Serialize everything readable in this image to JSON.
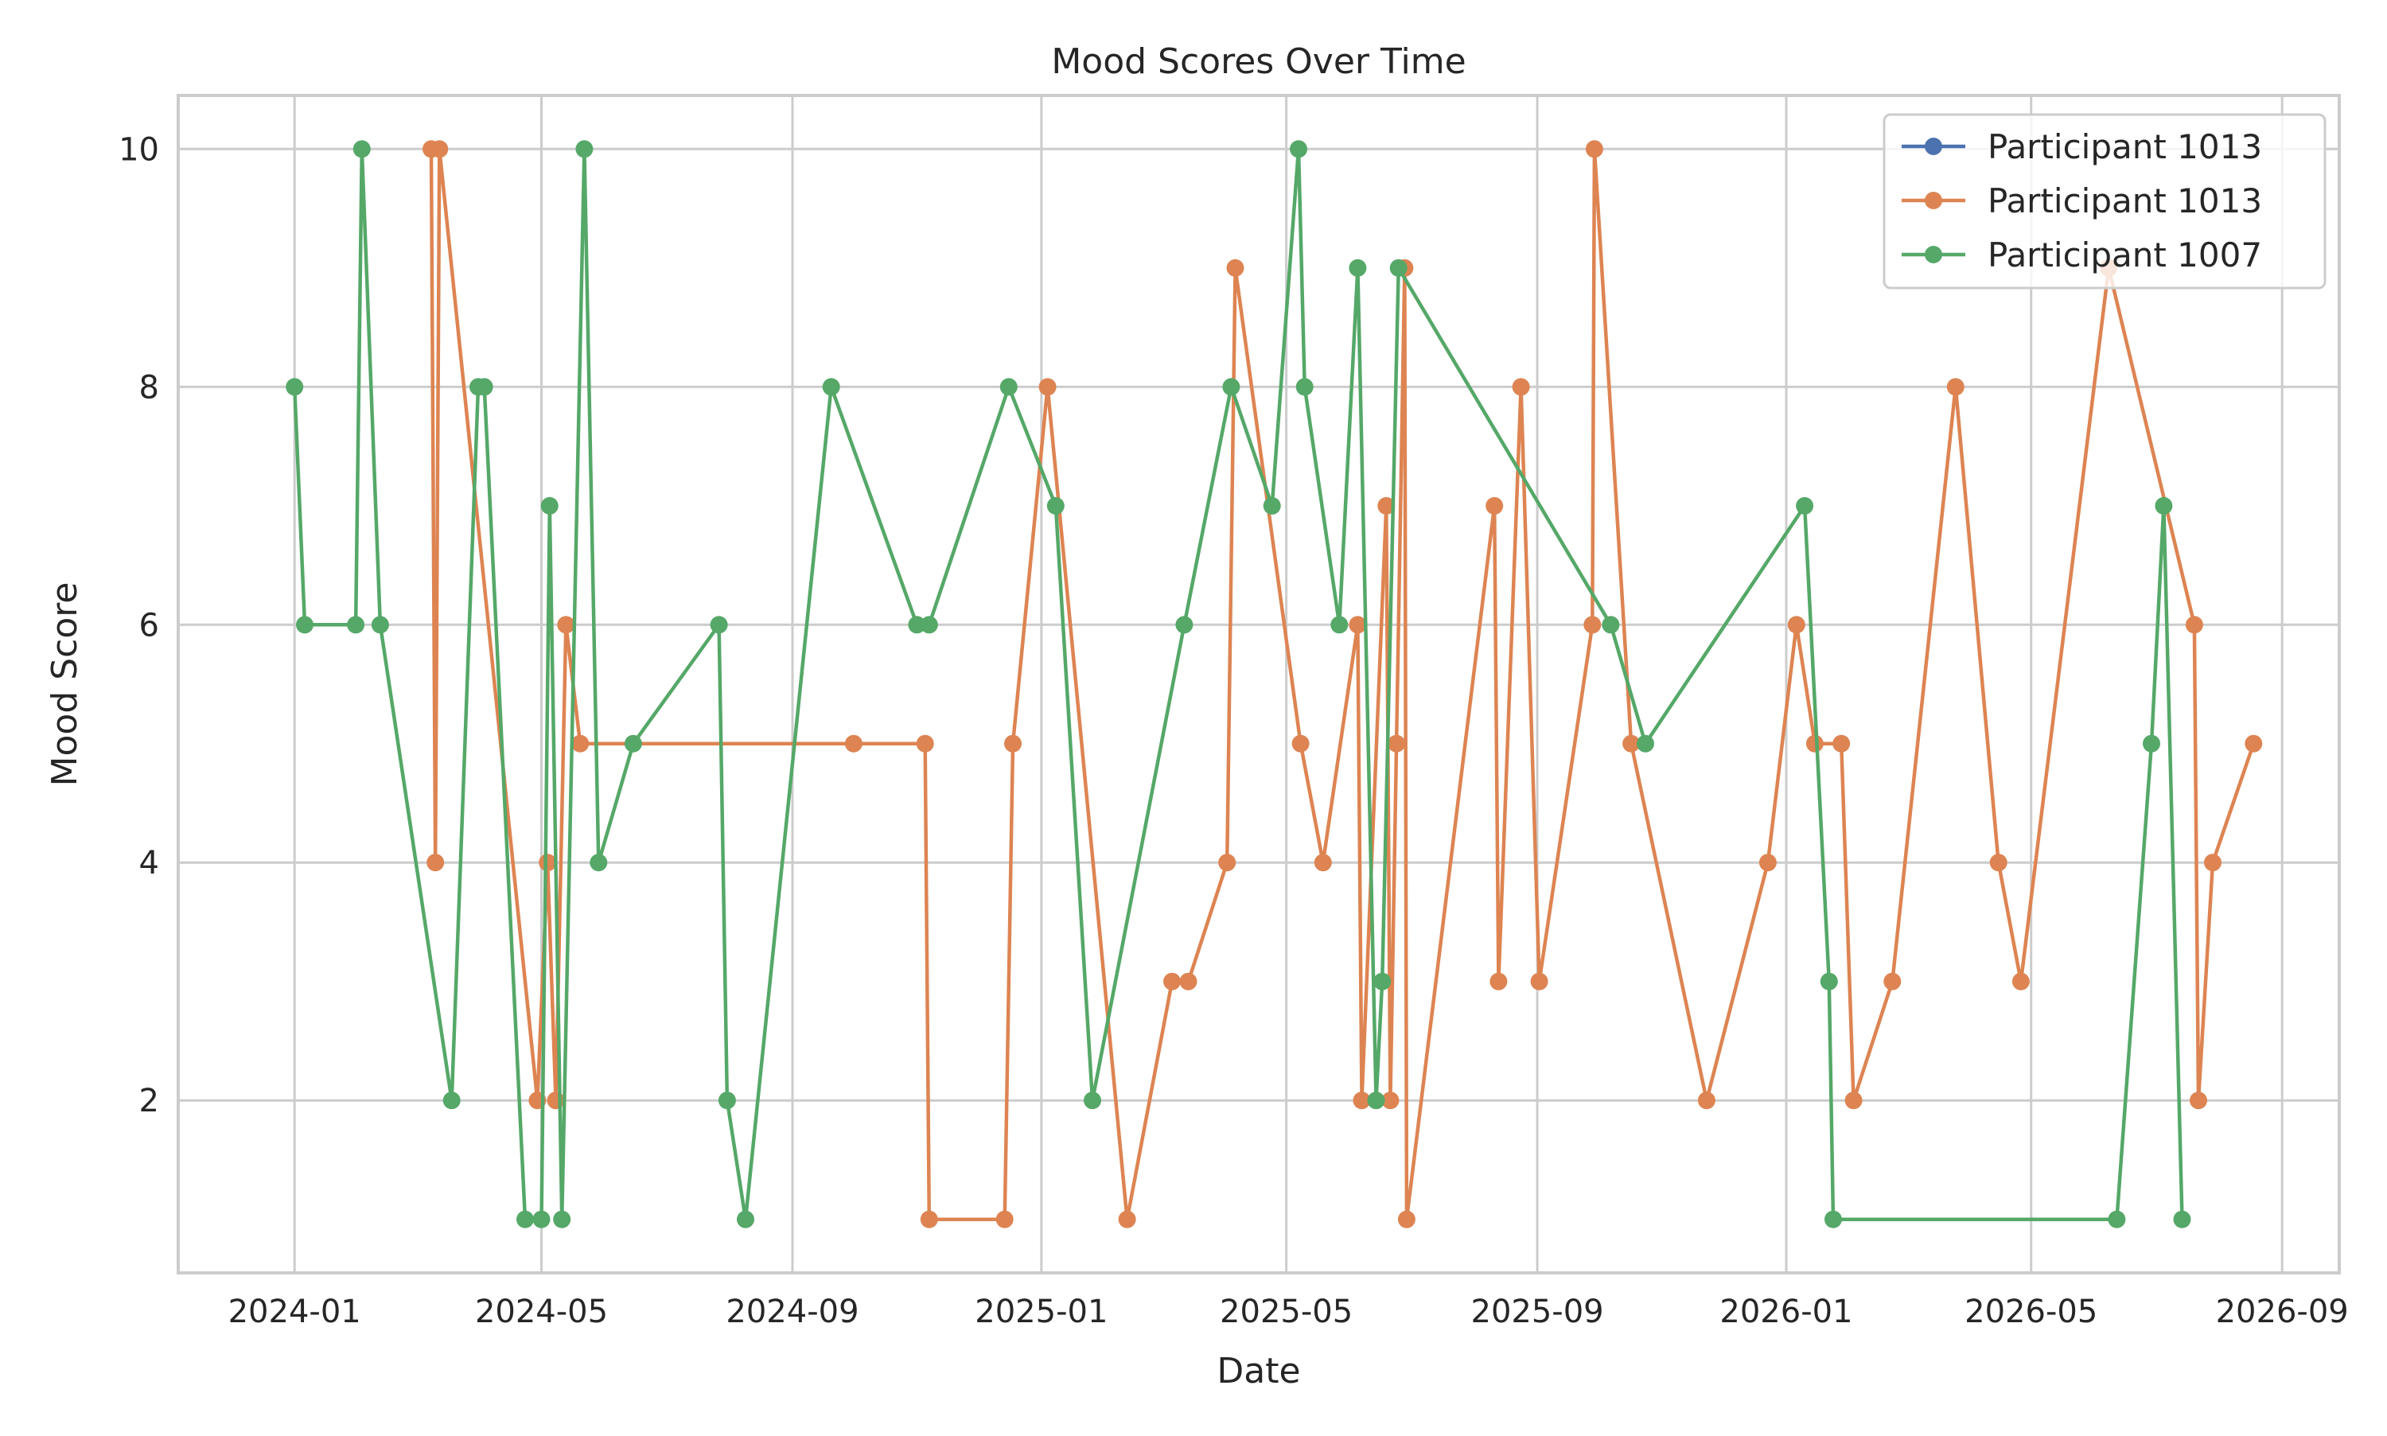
{
  "chart_data": {
    "type": "line",
    "title": "Mood Scores Over Time",
    "xlabel": "Date",
    "ylabel": "Mood Score",
    "xlim": [
      "2023-11-05",
      "2026-09-29"
    ],
    "ylim": [
      0.55,
      10.45
    ],
    "x_ticks": [
      "2024-01",
      "2024-05",
      "2024-09",
      "2025-01",
      "2025-05",
      "2025-09",
      "2026-01",
      "2026-05",
      "2026-09"
    ],
    "x_tick_dates": [
      "2024-01-01",
      "2024-05-01",
      "2024-09-01",
      "2025-01-01",
      "2025-05-01",
      "2025-09-01",
      "2026-01-01",
      "2026-05-01",
      "2026-09-01"
    ],
    "y_ticks": [
      2,
      4,
      6,
      8,
      10
    ],
    "grid": true,
    "legend_position": "top-right",
    "series": [
      {
        "name": "Participant 1013",
        "color": "#4c72b0",
        "points": []
      },
      {
        "name": "Participant 1013",
        "color": "#dd8452",
        "points": [
          [
            "2024-03-08",
            10
          ],
          [
            "2024-03-10",
            4
          ],
          [
            "2024-03-12",
            10
          ],
          [
            "2024-04-29",
            2
          ],
          [
            "2024-05-04",
            4
          ],
          [
            "2024-05-08",
            2
          ],
          [
            "2024-05-13",
            6
          ],
          [
            "2024-05-20",
            5
          ],
          [
            "2024-10-01",
            5
          ],
          [
            "2024-11-05",
            5
          ],
          [
            "2024-11-07",
            1
          ],
          [
            "2024-12-14",
            1
          ],
          [
            "2024-12-18",
            5
          ],
          [
            "2025-01-04",
            8
          ],
          [
            "2025-02-12",
            1
          ],
          [
            "2025-03-06",
            3
          ],
          [
            "2025-03-14",
            3
          ],
          [
            "2025-04-02",
            4
          ],
          [
            "2025-04-06",
            9
          ],
          [
            "2025-05-08",
            5
          ],
          [
            "2025-05-19",
            4
          ],
          [
            "2025-06-05",
            6
          ],
          [
            "2025-06-07",
            2
          ],
          [
            "2025-06-19",
            7
          ],
          [
            "2025-06-21",
            2
          ],
          [
            "2025-06-24",
            5
          ],
          [
            "2025-06-28",
            9
          ],
          [
            "2025-06-29",
            1
          ],
          [
            "2025-08-11",
            7
          ],
          [
            "2025-08-13",
            3
          ],
          [
            "2025-08-24",
            8
          ],
          [
            "2025-09-02",
            3
          ],
          [
            "2025-09-28",
            6
          ],
          [
            "2025-09-29",
            10
          ],
          [
            "2025-10-17",
            5
          ],
          [
            "2025-11-23",
            2
          ],
          [
            "2025-12-23",
            4
          ],
          [
            "2026-01-06",
            6
          ],
          [
            "2026-01-15",
            5
          ],
          [
            "2026-01-28",
            5
          ],
          [
            "2026-02-03",
            2
          ],
          [
            "2026-02-22",
            3
          ],
          [
            "2026-03-25",
            8
          ],
          [
            "2026-04-15",
            4
          ],
          [
            "2026-04-26",
            3
          ],
          [
            "2026-06-08",
            9
          ],
          [
            "2026-07-20",
            6
          ],
          [
            "2026-07-22",
            2
          ],
          [
            "2026-07-29",
            4
          ],
          [
            "2026-08-18",
            5
          ]
        ]
      },
      {
        "name": "Participant 1007",
        "color": "#55a868",
        "points": [
          [
            "2024-01-01",
            8
          ],
          [
            "2024-01-06",
            6
          ],
          [
            "2024-01-31",
            6
          ],
          [
            "2024-02-03",
            10
          ],
          [
            "2024-02-12",
            6
          ],
          [
            "2024-03-18",
            2
          ],
          [
            "2024-03-31",
            8
          ],
          [
            "2024-04-03",
            8
          ],
          [
            "2024-04-23",
            1
          ],
          [
            "2024-05-01",
            1
          ],
          [
            "2024-05-05",
            7
          ],
          [
            "2024-05-11",
            1
          ],
          [
            "2024-05-22",
            10
          ],
          [
            "2024-05-29",
            4
          ],
          [
            "2024-06-15",
            5
          ],
          [
            "2024-07-27",
            6
          ],
          [
            "2024-07-31",
            2
          ],
          [
            "2024-08-09",
            1
          ],
          [
            "2024-09-20",
            8
          ],
          [
            "2024-11-01",
            6
          ],
          [
            "2024-11-07",
            6
          ],
          [
            "2024-12-16",
            8
          ],
          [
            "2025-01-08",
            7
          ],
          [
            "2025-01-26",
            2
          ],
          [
            "2025-03-12",
            6
          ],
          [
            "2025-04-04",
            8
          ],
          [
            "2025-04-24",
            7
          ],
          [
            "2025-05-07",
            10
          ],
          [
            "2025-05-10",
            8
          ],
          [
            "2025-05-27",
            6
          ],
          [
            "2025-06-05",
            9
          ],
          [
            "2025-06-14",
            2
          ],
          [
            "2025-06-17",
            3
          ],
          [
            "2025-06-25",
            9
          ],
          [
            "2025-10-07",
            6
          ],
          [
            "2025-10-24",
            5
          ],
          [
            "2026-01-10",
            7
          ],
          [
            "2026-01-22",
            3
          ],
          [
            "2026-01-24",
            1
          ],
          [
            "2026-06-12",
            1
          ],
          [
            "2026-06-29",
            5
          ],
          [
            "2026-07-05",
            7
          ],
          [
            "2026-07-14",
            1
          ]
        ]
      }
    ]
  }
}
